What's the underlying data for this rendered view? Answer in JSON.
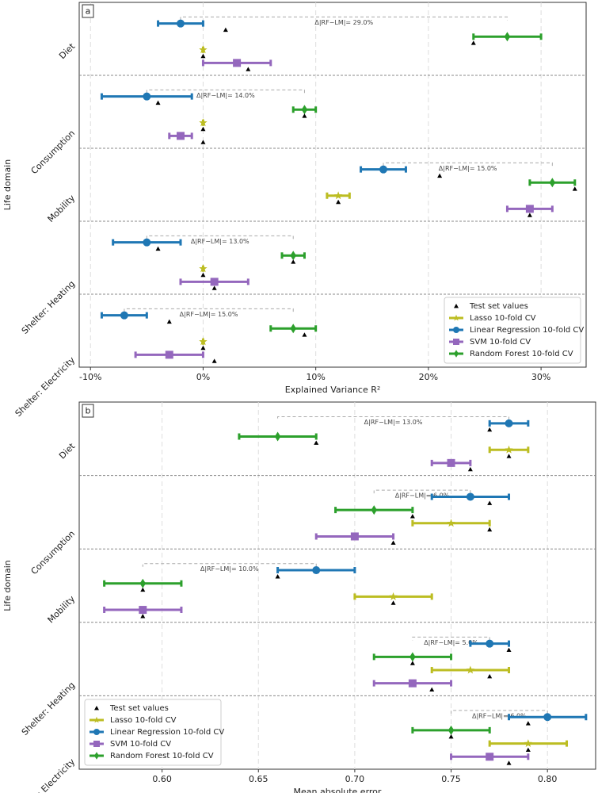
{
  "chart_data": [
    {
      "type": "errorbar",
      "panel_label": "a",
      "xlabel": "Explained Variance R²",
      "ylabel": "Life domain",
      "categories": [
        "Diet",
        "Consumption",
        "Mobility",
        "Shelter: Heating",
        "Shelter: Electricity"
      ],
      "xlim": [
        -11,
        34
      ],
      "xticks": [
        {
          "value": -10,
          "label": "-10%"
        },
        {
          "value": 0,
          "label": "0%"
        },
        {
          "value": 10,
          "label": "10%"
        },
        {
          "value": 20,
          "label": "20%"
        },
        {
          "value": 30,
          "label": "30%"
        }
      ],
      "grid": true,
      "legend_loc": "lower right",
      "test_legend": "Test set values",
      "test_color": "#000000",
      "series": [
        {
          "name": "Lasso 10-fold CV",
          "color": "#bcbd22",
          "marker": "star",
          "values": [
            0,
            0,
            12,
            0,
            0
          ],
          "errors": [
            0,
            0,
            1,
            0,
            0
          ],
          "test_values": [
            0,
            0,
            12,
            0,
            0
          ]
        },
        {
          "name": "Linear Regression 10-fold CV",
          "color": "#1f77b4",
          "marker": "circle",
          "values": [
            -2,
            -5,
            16,
            -5,
            -7
          ],
          "errors": [
            2,
            4,
            2,
            3,
            2
          ],
          "test_values": [
            2,
            -4,
            21,
            -4,
            -3
          ]
        },
        {
          "name": "SVM 10-fold CV",
          "color": "#9467bd",
          "marker": "square",
          "values": [
            3,
            -2,
            29,
            1,
            -3
          ],
          "errors": [
            3,
            1,
            2,
            3,
            3
          ],
          "test_values": [
            4,
            0,
            29,
            1,
            1
          ]
        },
        {
          "name": "Random Forest 10-fold CV",
          "color": "#2ca02c",
          "marker": "diamond",
          "values": [
            27,
            9,
            31,
            8,
            8
          ],
          "errors": [
            3,
            1,
            2,
            1,
            2
          ],
          "test_values": [
            24,
            9,
            33,
            8,
            9
          ]
        }
      ],
      "annotations": [
        "Δ|RF−LM|= 29.0%",
        "Δ|RF−LM|= 14.0%",
        "Δ|RF−LM|= 15.0%",
        "Δ|RF−LM|= 13.0%",
        "Δ|RF−LM|= 15.0%"
      ]
    },
    {
      "type": "errorbar",
      "panel_label": "b",
      "xlabel": "Mean absolute error",
      "ylabel": "Life domain",
      "categories": [
        "Diet",
        "Consumption",
        "Mobility",
        "Shelter: Heating",
        "Shelter: Electricity"
      ],
      "xlim": [
        0.557,
        0.825
      ],
      "xticks": [
        {
          "value": 0.6,
          "label": "0.60"
        },
        {
          "value": 0.65,
          "label": "0.65"
        },
        {
          "value": 0.7,
          "label": "0.70"
        },
        {
          "value": 0.75,
          "label": "0.75"
        },
        {
          "value": 0.8,
          "label": "0.80"
        }
      ],
      "grid": true,
      "legend_loc": "lower left",
      "test_legend": "Test set values",
      "test_color": "#000000",
      "series": [
        {
          "name": "Lasso 10-fold CV",
          "color": "#bcbd22",
          "marker": "star",
          "values": [
            0.78,
            0.75,
            0.72,
            0.76,
            0.79
          ],
          "errors": [
            0.01,
            0.02,
            0.02,
            0.02,
            0.02
          ],
          "test_values": [
            0.78,
            0.77,
            0.72,
            0.77,
            0.79
          ]
        },
        {
          "name": "Linear Regression 10-fold CV",
          "color": "#1f77b4",
          "marker": "circle",
          "values": [
            0.78,
            0.76,
            0.68,
            0.77,
            0.8
          ],
          "errors": [
            0.01,
            0.02,
            0.02,
            0.01,
            0.02
          ],
          "test_values": [
            0.77,
            0.77,
            0.66,
            0.78,
            0.79
          ]
        },
        {
          "name": "SVM 10-fold CV",
          "color": "#9467bd",
          "marker": "square",
          "values": [
            0.75,
            0.7,
            0.59,
            0.73,
            0.77
          ],
          "errors": [
            0.01,
            0.02,
            0.02,
            0.02,
            0.02
          ],
          "test_values": [
            0.76,
            0.72,
            0.59,
            0.74,
            0.78
          ]
        },
        {
          "name": "Random Forest 10-fold CV",
          "color": "#2ca02c",
          "marker": "diamond",
          "values": [
            0.66,
            0.71,
            0.59,
            0.73,
            0.75
          ],
          "errors": [
            0.02,
            0.02,
            0.02,
            0.02,
            0.02
          ],
          "test_values": [
            0.68,
            0.73,
            0.59,
            0.73,
            0.75
          ]
        }
      ],
      "annotations": [
        "Δ|RF−LM|= 13.0%",
        "Δ|RF−LM|= 6.0%",
        "Δ|RF−LM|= 10.0%",
        "Δ|RF−LM|= 5.0%",
        "Δ|RF−LM|= 6.0%"
      ]
    }
  ]
}
